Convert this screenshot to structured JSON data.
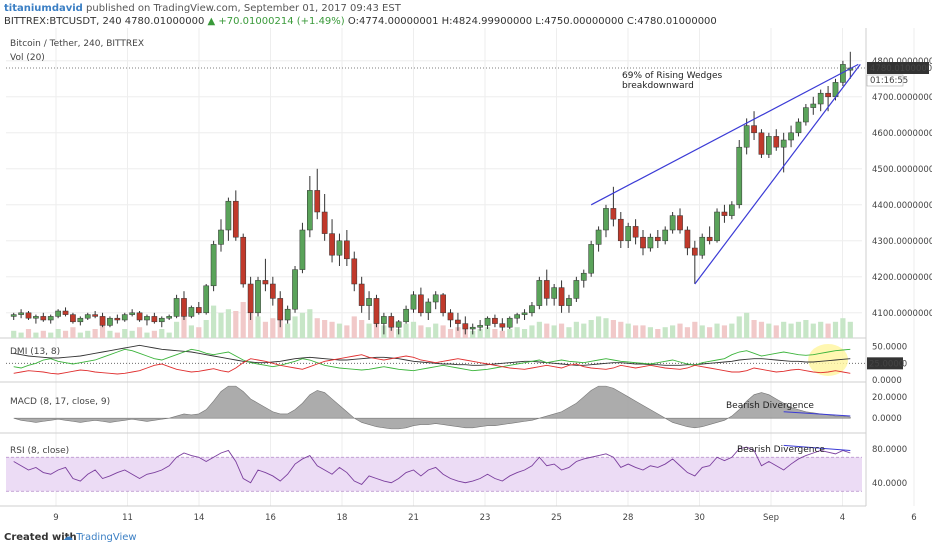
{
  "header": {
    "author": "titaniumdavid",
    "published": "published on TradingView.com, September 01, 2017 09:43 EST",
    "symbol_line": "BITTREX:BTCUSDT, 240 4780.01000000",
    "change": "▲ +70.01000214 (+1.49%)",
    "ohlc": "O:4774.00000001 H:4824.99900000 L:4750.00000000 C:4780.01000000"
  },
  "panes": {
    "price_title": "Bitcoin / Tether, 240, BITTREX",
    "vol_label": "Vol (20)",
    "dmi_label": "DMI (13, 8)",
    "macd_label": "MACD (8, 17, close, 9)",
    "rsi_label": "RSI (8, close)"
  },
  "annotations": {
    "wedge_line1": "69% of Rising Wedges",
    "wedge_line2": "breakdownward",
    "macd_div": "Bearish Divergence",
    "rsi_div": "Bearish Divergence"
  },
  "price_badge": {
    "value": "4780.01000000",
    "timer": "01:16:55"
  },
  "dmi_badge": "25.0000",
  "footer": {
    "created": "Created with",
    "brand": "TradingView"
  },
  "colors": {
    "up": "#5aa35a",
    "down": "#c0392b",
    "wedge": "#3b3bd6",
    "macd": "#9e9e9e",
    "rsi": "#7b3f9e",
    "rsi_band": "#ecdcf5",
    "dmi_adx": "#333333",
    "dmi_plus": "#3cb43c",
    "dmi_minus": "#e03030",
    "highlight": "#fff59d"
  },
  "chart_data": {
    "type": "candlestick",
    "price_axis": {
      "ticks": [
        4100,
        4200,
        4300,
        4400,
        4500,
        4600,
        4700,
        4800
      ],
      "tick_labels": [
        "4100.00000000",
        "4200.00000000",
        "4300.00000000",
        "4400.00000000",
        "4500.00000000",
        "4600.00000000",
        "4700.00000000",
        "4800.00000000"
      ],
      "ylim": [
        4030,
        4880
      ]
    },
    "time_labels": [
      "9",
      "11",
      "14",
      "16",
      "18",
      "21",
      "23",
      "25",
      "28",
      "30",
      "Sep",
      "4",
      "6"
    ],
    "dmi_axis": {
      "ticks": [
        0,
        25,
        50
      ],
      "tick_labels": [
        "0.0000",
        "25.0000",
        "50.0000"
      ]
    },
    "macd_axis": {
      "ticks": [
        0,
        20
      ],
      "tick_labels": [
        "0.0000",
        "20.0000"
      ]
    },
    "rsi_axis": {
      "ticks": [
        40,
        80
      ],
      "tick_labels": [
        "40.0000",
        "80.0000"
      ],
      "band": [
        30,
        70
      ]
    },
    "candles": [
      [
        4090,
        4100,
        4080,
        4095
      ],
      [
        4095,
        4110,
        4085,
        4100
      ],
      [
        4100,
        4105,
        4080,
        4085
      ],
      [
        4085,
        4095,
        4070,
        4090
      ],
      [
        4090,
        4100,
        4075,
        4080
      ],
      [
        4080,
        4095,
        4070,
        4090
      ],
      [
        4090,
        4110,
        4085,
        4105
      ],
      [
        4105,
        4115,
        4090,
        4095
      ],
      [
        4095,
        4100,
        4070,
        4075
      ],
      [
        4075,
        4090,
        4065,
        4085
      ],
      [
        4085,
        4100,
        4080,
        4095
      ],
      [
        4095,
        4105,
        4085,
        4090
      ],
      [
        4090,
        4100,
        4060,
        4065
      ],
      [
        4065,
        4090,
        4060,
        4085
      ],
      [
        4085,
        4095,
        4070,
        4080
      ],
      [
        4080,
        4100,
        4075,
        4095
      ],
      [
        4095,
        4110,
        4090,
        4100
      ],
      [
        4100,
        4105,
        4075,
        4080
      ],
      [
        4080,
        4095,
        4065,
        4090
      ],
      [
        4090,
        4100,
        4070,
        4075
      ],
      [
        4075,
        4090,
        4060,
        4085
      ],
      [
        4085,
        4095,
        4080,
        4090
      ],
      [
        4090,
        4150,
        4085,
        4140
      ],
      [
        4140,
        4160,
        4080,
        4090
      ],
      [
        4090,
        4120,
        4085,
        4115
      ],
      [
        4115,
        4130,
        4095,
        4100
      ],
      [
        4100,
        4180,
        4095,
        4175
      ],
      [
        4175,
        4300,
        4160,
        4290
      ],
      [
        4290,
        4360,
        4270,
        4330
      ],
      [
        4330,
        4420,
        4300,
        4410
      ],
      [
        4410,
        4440,
        4300,
        4310
      ],
      [
        4310,
        4320,
        4170,
        4180
      ],
      [
        4180,
        4200,
        4080,
        4100
      ],
      [
        4100,
        4200,
        4090,
        4190
      ],
      [
        4190,
        4250,
        4160,
        4180
      ],
      [
        4180,
        4200,
        4120,
        4140
      ],
      [
        4140,
        4160,
        4060,
        4080
      ],
      [
        4080,
        4120,
        4070,
        4110
      ],
      [
        4110,
        4230,
        4100,
        4220
      ],
      [
        4220,
        4350,
        4210,
        4330
      ],
      [
        4330,
        4480,
        4310,
        4440
      ],
      [
        4440,
        4500,
        4360,
        4380
      ],
      [
        4380,
        4430,
        4300,
        4320
      ],
      [
        4320,
        4360,
        4240,
        4260
      ],
      [
        4260,
        4320,
        4230,
        4300
      ],
      [
        4300,
        4330,
        4230,
        4250
      ],
      [
        4250,
        4270,
        4160,
        4180
      ],
      [
        4180,
        4200,
        4100,
        4120
      ],
      [
        4120,
        4160,
        4080,
        4140
      ],
      [
        4140,
        4150,
        4060,
        4070
      ],
      [
        4070,
        4100,
        4040,
        4090
      ],
      [
        4090,
        4100,
        4050,
        4060
      ],
      [
        4060,
        4080,
        4040,
        4075
      ],
      [
        4075,
        4120,
        4070,
        4110
      ],
      [
        4110,
        4160,
        4100,
        4150
      ],
      [
        4150,
        4170,
        4090,
        4100
      ],
      [
        4100,
        4140,
        4080,
        4130
      ],
      [
        4130,
        4160,
        4110,
        4150
      ],
      [
        4150,
        4155,
        4090,
        4100
      ],
      [
        4100,
        4110,
        4060,
        4080
      ],
      [
        4080,
        4100,
        4050,
        4070
      ],
      [
        4070,
        4090,
        4040,
        4055
      ],
      [
        4055,
        4070,
        4040,
        4060
      ],
      [
        4060,
        4080,
        4050,
        4065
      ],
      [
        4065,
        4090,
        4055,
        4085
      ],
      [
        4085,
        4095,
        4060,
        4070
      ],
      [
        4070,
        4085,
        4050,
        4060
      ],
      [
        4060,
        4090,
        4055,
        4085
      ],
      [
        4085,
        4100,
        4070,
        4095
      ],
      [
        4095,
        4110,
        4080,
        4100
      ],
      [
        4100,
        4130,
        4090,
        4120
      ],
      [
        4120,
        4200,
        4110,
        4190
      ],
      [
        4190,
        4220,
        4120,
        4140
      ],
      [
        4140,
        4180,
        4120,
        4170
      ],
      [
        4170,
        4190,
        4100,
        4120
      ],
      [
        4120,
        4150,
        4100,
        4140
      ],
      [
        4140,
        4200,
        4130,
        4190
      ],
      [
        4190,
        4220,
        4170,
        4210
      ],
      [
        4210,
        4300,
        4200,
        4290
      ],
      [
        4290,
        4340,
        4270,
        4330
      ],
      [
        4330,
        4400,
        4310,
        4390
      ],
      [
        4390,
        4450,
        4340,
        4360
      ],
      [
        4360,
        4380,
        4280,
        4300
      ],
      [
        4300,
        4350,
        4280,
        4340
      ],
      [
        4340,
        4360,
        4290,
        4310
      ],
      [
        4310,
        4330,
        4260,
        4280
      ],
      [
        4280,
        4320,
        4270,
        4310
      ],
      [
        4310,
        4330,
        4280,
        4300
      ],
      [
        4300,
        4340,
        4290,
        4330
      ],
      [
        4330,
        4380,
        4320,
        4370
      ],
      [
        4370,
        4390,
        4320,
        4330
      ],
      [
        4330,
        4340,
        4260,
        4280
      ],
      [
        4280,
        4300,
        4180,
        4260
      ],
      [
        4260,
        4320,
        4250,
        4310
      ],
      [
        4310,
        4340,
        4290,
        4300
      ],
      [
        4300,
        4390,
        4295,
        4380
      ],
      [
        4380,
        4400,
        4350,
        4370
      ],
      [
        4370,
        4410,
        4360,
        4400
      ],
      [
        4400,
        4580,
        4390,
        4560
      ],
      [
        4560,
        4640,
        4540,
        4620
      ],
      [
        4620,
        4660,
        4580,
        4600
      ],
      [
        4600,
        4610,
        4530,
        4540
      ],
      [
        4540,
        4600,
        4530,
        4590
      ],
      [
        4590,
        4610,
        4550,
        4560
      ],
      [
        4560,
        4600,
        4490,
        4580
      ],
      [
        4580,
        4620,
        4560,
        4600
      ],
      [
        4600,
        4640,
        4590,
        4630
      ],
      [
        4630,
        4680,
        4620,
        4670
      ],
      [
        4670,
        4700,
        4650,
        4680
      ],
      [
        4680,
        4720,
        4660,
        4710
      ],
      [
        4710,
        4730,
        4660,
        4700
      ],
      [
        4700,
        4750,
        4690,
        4740
      ],
      [
        4740,
        4800,
        4730,
        4790
      ],
      [
        4774,
        4825,
        4750,
        4780
      ]
    ],
    "volume": [
      4,
      3,
      5,
      3,
      4,
      3,
      5,
      4,
      6,
      3,
      4,
      5,
      7,
      4,
      3,
      5,
      4,
      6,
      3,
      4,
      5,
      3,
      9,
      12,
      7,
      6,
      10,
      18,
      14,
      16,
      15,
      20,
      14,
      12,
      9,
      11,
      13,
      8,
      12,
      14,
      16,
      11,
      10,
      9,
      8,
      7,
      12,
      10,
      8,
      9,
      7,
      6,
      5,
      8,
      9,
      7,
      6,
      8,
      7,
      5,
      6,
      5,
      4,
      5,
      6,
      5,
      4,
      5,
      6,
      5,
      7,
      9,
      8,
      7,
      8,
      6,
      9,
      8,
      10,
      12,
      11,
      10,
      9,
      8,
      7,
      7,
      6,
      5,
      6,
      7,
      8,
      6,
      9,
      7,
      6,
      8,
      7,
      8,
      12,
      14,
      10,
      9,
      8,
      7,
      9,
      8,
      9,
      10,
      8,
      9,
      8,
      9,
      11,
      9
    ],
    "ma_line": [],
    "macd": [
      0,
      -2,
      -3,
      -4,
      -3,
      -2,
      -1,
      -2,
      -3,
      -4,
      -3,
      -2,
      -3,
      -4,
      -3,
      -2,
      -1,
      -2,
      -3,
      -2,
      -1,
      0,
      2,
      4,
      3,
      4,
      8,
      16,
      25,
      30,
      30,
      25,
      18,
      14,
      10,
      6,
      4,
      4,
      8,
      14,
      22,
      26,
      24,
      18,
      12,
      6,
      0,
      -4,
      -6,
      -8,
      -9,
      -10,
      -10,
      -9,
      -7,
      -6,
      -6,
      -5,
      -6,
      -7,
      -8,
      -9,
      -9,
      -8,
      -7,
      -7,
      -6,
      -5,
      -4,
      -3,
      -2,
      0,
      2,
      4,
      6,
      10,
      14,
      20,
      26,
      30,
      30,
      28,
      24,
      20,
      16,
      12,
      8,
      4,
      0,
      -4,
      -6,
      -8,
      -9,
      -8,
      -6,
      -4,
      -2,
      2,
      8,
      16,
      22,
      24,
      22,
      18,
      14,
      10,
      8,
      6,
      5,
      4,
      3,
      2,
      2,
      1
    ],
    "rsi": [
      65,
      60,
      55,
      58,
      52,
      50,
      55,
      58,
      45,
      42,
      50,
      55,
      45,
      48,
      52,
      55,
      50,
      45,
      50,
      52,
      55,
      60,
      70,
      75,
      72,
      70,
      65,
      70,
      75,
      78,
      65,
      45,
      40,
      55,
      52,
      48,
      42,
      50,
      62,
      68,
      72,
      60,
      55,
      50,
      58,
      52,
      42,
      38,
      48,
      45,
      42,
      40,
      45,
      52,
      55,
      48,
      55,
      58,
      50,
      45,
      42,
      40,
      42,
      45,
      50,
      45,
      42,
      48,
      52,
      55,
      60,
      70,
      60,
      62,
      55,
      58,
      65,
      68,
      70,
      72,
      74,
      70,
      58,
      62,
      58,
      55,
      60,
      58,
      62,
      68,
      60,
      52,
      48,
      58,
      60,
      70,
      66,
      70,
      80,
      82,
      78,
      60,
      65,
      60,
      55,
      62,
      68,
      72,
      75,
      78,
      76,
      74,
      78,
      75
    ],
    "dmi_adx": [
      40,
      38,
      36,
      35,
      34,
      33,
      33,
      34,
      35,
      36,
      38,
      40,
      42,
      44,
      46,
      48,
      50,
      52,
      50,
      48,
      46,
      45,
      44,
      43,
      42,
      40,
      38,
      36,
      34,
      32,
      30,
      28,
      27,
      26,
      26,
      27,
      28,
      30,
      32,
      33,
      34,
      33,
      32,
      31,
      30,
      30,
      31,
      32,
      33,
      34,
      34,
      33,
      32,
      30,
      28,
      27,
      26,
      25,
      24,
      24,
      23,
      23,
      22,
      22,
      23,
      24,
      25,
      26,
      27,
      28,
      28,
      27,
      26,
      25,
      24,
      23,
      22,
      22,
      23,
      24,
      25,
      26,
      26,
      25,
      24,
      24,
      23,
      23,
      22,
      22,
      22,
      23,
      23,
      24,
      25,
      26,
      27,
      28,
      30,
      31,
      32,
      32,
      31,
      30,
      29,
      28,
      28,
      27,
      27,
      28,
      29,
      30,
      31,
      32
    ],
    "dmi_plus": [
      20,
      18,
      22,
      25,
      30,
      32,
      28,
      26,
      24,
      26,
      28,
      30,
      34,
      38,
      42,
      46,
      44,
      40,
      36,
      32,
      30,
      34,
      38,
      42,
      46,
      44,
      40,
      38,
      40,
      42,
      36,
      30,
      26,
      24,
      22,
      20,
      22,
      25,
      28,
      32,
      30,
      26,
      22,
      20,
      18,
      17,
      16,
      15,
      16,
      18,
      20,
      18,
      16,
      15,
      14,
      16,
      18,
      20,
      22,
      20,
      18,
      16,
      14,
      15,
      16,
      18,
      20,
      22,
      24,
      26,
      28,
      30,
      26,
      28,
      30,
      28,
      27,
      26,
      28,
      30,
      32,
      30,
      28,
      27,
      26,
      25,
      24,
      26,
      28,
      30,
      27,
      24,
      22,
      26,
      28,
      30,
      32,
      38,
      42,
      44,
      40,
      36,
      38,
      40,
      42,
      40,
      38,
      37,
      38,
      40,
      42,
      44,
      45,
      46
    ],
    "dmi_minus": [
      10,
      12,
      14,
      13,
      12,
      10,
      9,
      11,
      13,
      15,
      14,
      12,
      11,
      10,
      9,
      10,
      12,
      14,
      18,
      22,
      24,
      20,
      16,
      14,
      12,
      13,
      15,
      17,
      14,
      12,
      18,
      26,
      32,
      30,
      28,
      25,
      22,
      20,
      18,
      16,
      20,
      24,
      28,
      30,
      32,
      34,
      36,
      38,
      34,
      32,
      30,
      32,
      34,
      36,
      34,
      30,
      28,
      26,
      28,
      30,
      32,
      30,
      28,
      26,
      24,
      22,
      20,
      18,
      17,
      16,
      18,
      20,
      22,
      20,
      18,
      22,
      24,
      20,
      18,
      17,
      16,
      18,
      22,
      20,
      18,
      20,
      22,
      20,
      18,
      17,
      16,
      18,
      22,
      20,
      18,
      16,
      14,
      12,
      12,
      14,
      18,
      16,
      14,
      12,
      13,
      15,
      16,
      14,
      12,
      11,
      12,
      14,
      12,
      10
    ]
  }
}
